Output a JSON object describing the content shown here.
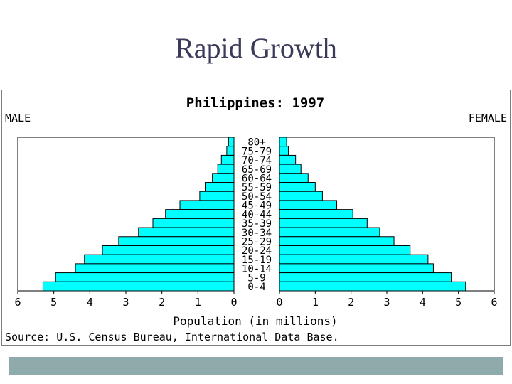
{
  "slide": {
    "title": "Rapid Growth"
  },
  "colors": {
    "bar_fill": "#00ffff",
    "bar_stroke": "#000000",
    "frame": "#9fb5b5",
    "footer_bar": "#8eaaaa",
    "title_text": "#3a3a5a"
  },
  "chart_data": {
    "type": "bar",
    "orientation": "horizontal-population-pyramid",
    "title": "Philippines: 1997",
    "left_label": "MALE",
    "right_label": "FEMALE",
    "xlabel": "Population (in millions)",
    "source": "Source: U.S. Census Bureau, International Data Base.",
    "xlim": [
      0,
      6
    ],
    "x_ticks": [
      "0",
      "1",
      "2",
      "3",
      "4",
      "5",
      "6"
    ],
    "categories": [
      "80+",
      "75-79",
      "70-74",
      "65-69",
      "60-64",
      "55-59",
      "50-54",
      "45-49",
      "40-44",
      "35-39",
      "30-34",
      "25-29",
      "20-24",
      "15-19",
      "10-14",
      "5-9",
      "0-4"
    ],
    "series": [
      {
        "name": "MALE",
        "values": [
          0.15,
          0.2,
          0.35,
          0.45,
          0.6,
          0.8,
          0.95,
          1.5,
          1.9,
          2.25,
          2.65,
          3.2,
          3.65,
          4.15,
          4.4,
          4.95,
          5.3
        ]
      },
      {
        "name": "FEMALE",
        "values": [
          0.2,
          0.25,
          0.45,
          0.6,
          0.8,
          1.0,
          1.2,
          1.6,
          2.05,
          2.45,
          2.8,
          3.2,
          3.65,
          4.15,
          4.3,
          4.8,
          5.2
        ]
      }
    ]
  }
}
